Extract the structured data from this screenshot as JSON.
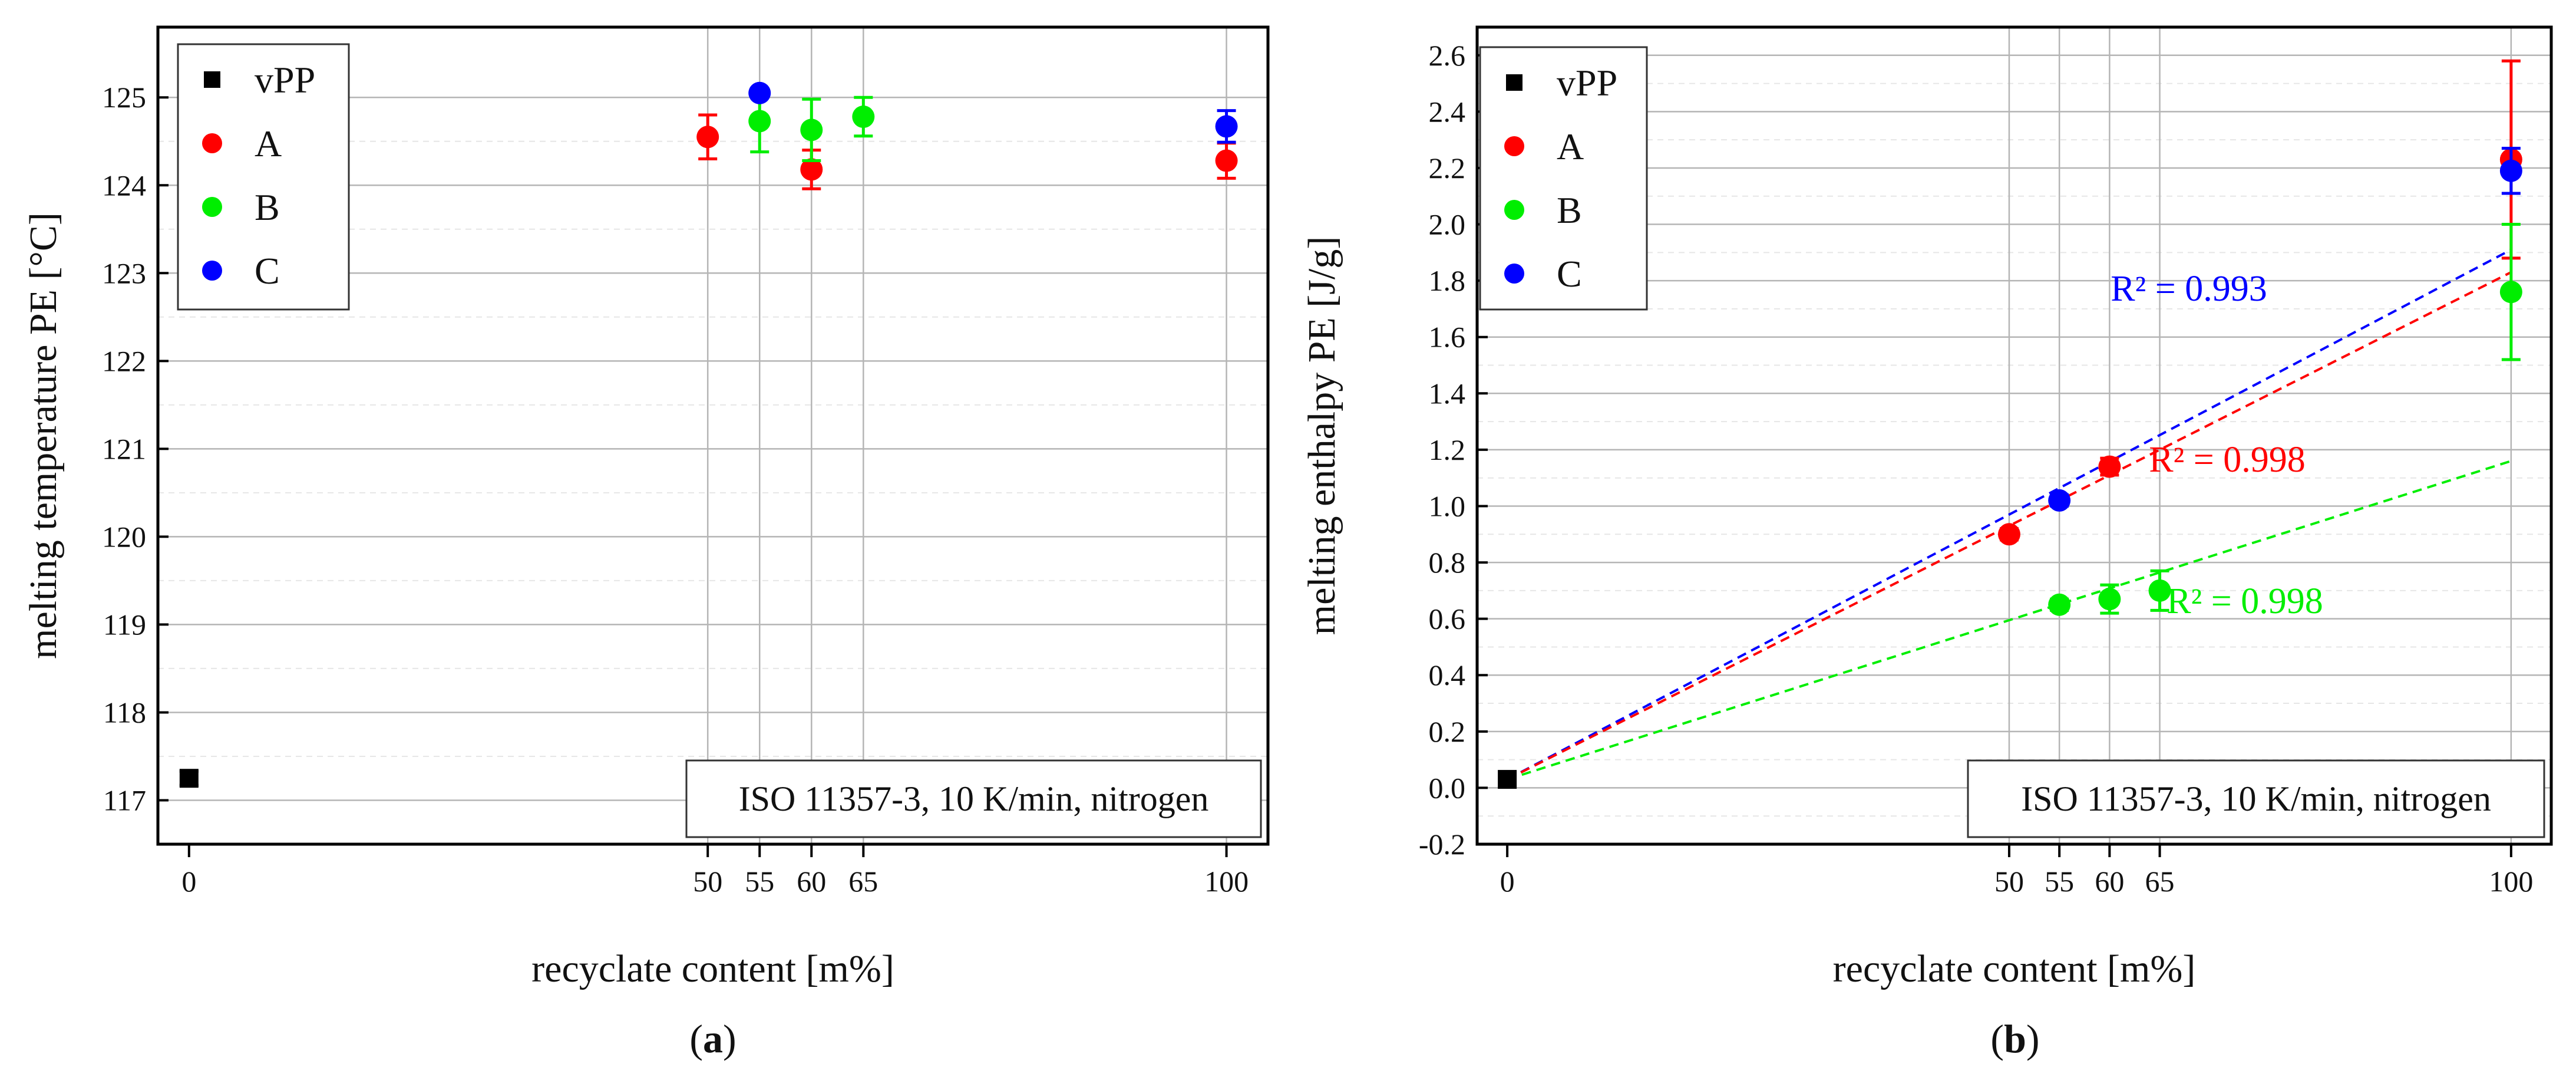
{
  "chart_data": [
    {
      "type": "scatter",
      "panel_label": "(a)",
      "ylabel": "melting temperature PE [°C]",
      "xlabel": "recyclate content [m%]",
      "xlim": [
        -3,
        104
      ],
      "ylim": [
        116.5,
        125.8
      ],
      "xticks": [
        0,
        50,
        55,
        60,
        65,
        100
      ],
      "yticks": [
        117,
        118,
        119,
        120,
        121,
        122,
        123,
        124,
        125
      ],
      "annotation": "ISO 11357-3, 10 K/min, nitrogen",
      "legend_position": "top-left",
      "series": [
        {
          "name": "vPP",
          "color": "#000000",
          "marker": "square",
          "points": [
            {
              "x": 0,
              "y": 117.25,
              "err": 0.08
            }
          ]
        },
        {
          "name": "A",
          "color": "#ff0000",
          "marker": "circle",
          "points": [
            {
              "x": 50,
              "y": 124.55,
              "err": 0.25
            },
            {
              "x": 60,
              "y": 124.18,
              "err": 0.22
            },
            {
              "x": 100,
              "y": 124.28,
              "err": 0.2
            }
          ]
        },
        {
          "name": "B",
          "color": "#00ee00",
          "marker": "circle",
          "points": [
            {
              "x": 55,
              "y": 124.73,
              "err": 0.35
            },
            {
              "x": 60,
              "y": 124.63,
              "err": 0.35
            },
            {
              "x": 65,
              "y": 124.78,
              "err": 0.22
            }
          ]
        },
        {
          "name": "C",
          "color": "#0000ff",
          "marker": "circle",
          "points": [
            {
              "x": 55,
              "y": 125.05,
              "err": 0.05
            },
            {
              "x": 100,
              "y": 124.67,
              "err": 0.18
            }
          ]
        }
      ]
    },
    {
      "type": "scatter",
      "panel_label": "(b)",
      "ylabel": "melting enthalpy PE [J/g]",
      "xlabel": "recyclate content [m%]",
      "xlim": [
        -3,
        104
      ],
      "ylim": [
        -0.2,
        2.7
      ],
      "xticks": [
        0,
        50,
        55,
        60,
        65,
        100
      ],
      "yticks": [
        -0.2,
        0.0,
        0.2,
        0.4,
        0.6,
        0.8,
        1.0,
        1.2,
        1.4,
        1.6,
        1.8,
        2.0,
        2.2,
        2.4,
        2.6
      ],
      "annotation": "ISO 11357-3, 10 K/min, nitrogen",
      "legend_position": "top-left",
      "series": [
        {
          "name": "vPP",
          "color": "#000000",
          "marker": "square",
          "points": [
            {
              "x": 0,
              "y": 0.03,
              "err": 0.0
            }
          ]
        },
        {
          "name": "A",
          "color": "#ff0000",
          "marker": "circle",
          "points": [
            {
              "x": 50,
              "y": 0.9,
              "err": 0.02
            },
            {
              "x": 60,
              "y": 1.14,
              "err": 0.03
            },
            {
              "x": 100,
              "y": 2.23,
              "err": 0.35
            }
          ]
        },
        {
          "name": "B",
          "color": "#00ee00",
          "marker": "circle",
          "points": [
            {
              "x": 55,
              "y": 0.65,
              "err": 0.02
            },
            {
              "x": 60,
              "y": 0.67,
              "err": 0.05
            },
            {
              "x": 65,
              "y": 0.7,
              "err": 0.07
            },
            {
              "x": 100,
              "y": 1.76,
              "err": 0.24
            }
          ]
        },
        {
          "name": "C",
          "color": "#0000ff",
          "marker": "circle",
          "points": [
            {
              "x": 55,
              "y": 1.02,
              "err": 0.02
            },
            {
              "x": 100,
              "y": 2.19,
              "err": 0.08
            }
          ]
        }
      ],
      "fit_lines": [
        {
          "series": "C",
          "color": "#0000ff",
          "from": [
            0,
            0.03
          ],
          "to": [
            100,
            1.91
          ],
          "label": "R² = 0.993"
        },
        {
          "series": "A",
          "color": "#ff0000",
          "from": [
            0,
            0.03
          ],
          "to": [
            100,
            1.83
          ],
          "label": "R² = 0.998"
        },
        {
          "series": "B",
          "color": "#00ee00",
          "from": [
            0,
            0.03
          ],
          "to": [
            100,
            1.16
          ],
          "label": "R² = 0.998"
        }
      ]
    }
  ]
}
